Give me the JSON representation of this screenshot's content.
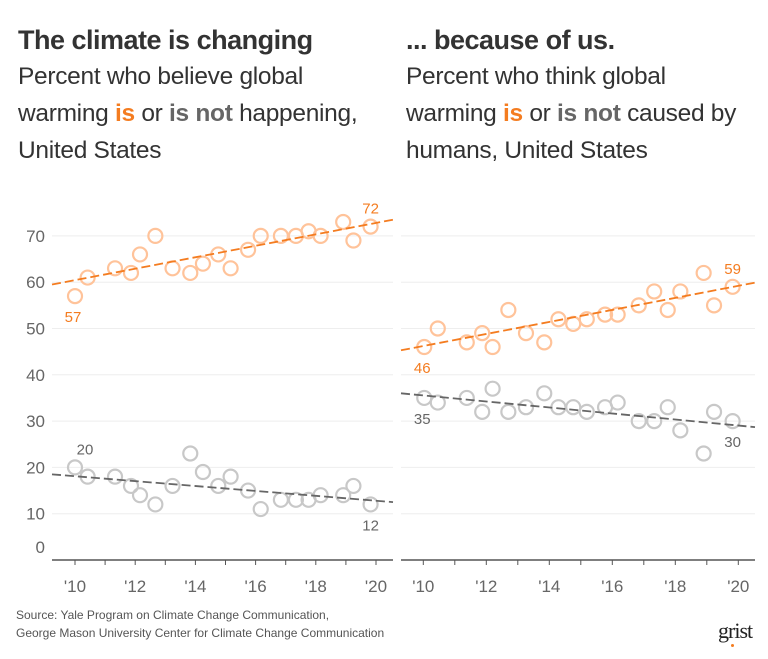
{
  "left_header": {
    "title": "The climate is changing",
    "sub_pre": "Percent who believe global warming ",
    "is": "is",
    "or": " or ",
    "is_not": "is not",
    "sub_post": " happening, United States"
  },
  "right_header": {
    "title": "... because of us.",
    "sub_pre": "Percent who think global warming ",
    "is": "is",
    "or": " or ",
    "is_not": "is not",
    "sub_post": " caused by humans, United States"
  },
  "footer": {
    "source_line1": "Source: Yale Program on Climate Change Communication,",
    "source_line2": "George Mason University Center for Climate Change Communication",
    "logo": "grist"
  },
  "colors": {
    "is": "#f47c20",
    "is_points": "#ffc39a",
    "is_not": "#666666",
    "is_not_points": "#c8c8c8",
    "grid": "#eeeeee"
  },
  "chart_data": [
    {
      "type": "scatter",
      "title": "The climate is changing",
      "ylim": [
        0,
        75
      ],
      "xlim": [
        2009.25,
        2020.6
      ],
      "y_ticks": [
        0,
        10,
        20,
        30,
        40,
        50,
        60,
        70
      ],
      "x_ticks": [
        "'10",
        "'12",
        "'14",
        "'16",
        "'18",
        "'20"
      ],
      "x_tick_years": [
        2010,
        2012,
        2014,
        2016,
        2018,
        2020
      ],
      "grid": true,
      "x": [
        2010.0,
        2010.42,
        2011.33,
        2011.86,
        2012.16,
        2012.67,
        2013.24,
        2013.83,
        2014.25,
        2014.76,
        2015.17,
        2015.75,
        2016.17,
        2016.84,
        2017.34,
        2017.76,
        2018.16,
        2018.91,
        2019.25,
        2019.82
      ],
      "series": [
        {
          "name": "is",
          "values": [
            57,
            61,
            63,
            62,
            66,
            70,
            63,
            62,
            64,
            66,
            63,
            67,
            70,
            70,
            70,
            71,
            70,
            73,
            69,
            72
          ],
          "trend": [
            59.5,
            73.5
          ],
          "labels": [
            {
              "index": 0,
              "text": "57",
              "pos": "below"
            },
            {
              "index": 19,
              "text": "72",
              "pos": "above"
            }
          ]
        },
        {
          "name": "is not",
          "values": [
            20,
            18,
            18,
            16,
            14,
            12,
            16,
            23,
            19,
            16,
            18,
            15,
            11,
            13,
            13,
            13,
            14,
            14,
            16,
            12
          ],
          "trend": [
            18.5,
            12.5
          ],
          "labels": [
            {
              "index": 0,
              "text": "20",
              "pos": "above"
            },
            {
              "index": 19,
              "text": "12",
              "pos": "below"
            }
          ]
        }
      ]
    },
    {
      "type": "scatter",
      "title": "... because of us.",
      "ylim": [
        0,
        75
      ],
      "xlim": [
        2009.3,
        2020.55
      ],
      "x_ticks": [
        "'10",
        "'12",
        "'14",
        "'16",
        "'18",
        "'20"
      ],
      "x_tick_years": [
        2010,
        2012,
        2014,
        2016,
        2018,
        2020
      ],
      "grid": true,
      "x": [
        2010.03,
        2010.46,
        2011.38,
        2011.87,
        2012.2,
        2012.7,
        2013.26,
        2013.84,
        2014.29,
        2014.76,
        2015.19,
        2015.77,
        2016.17,
        2016.84,
        2017.33,
        2017.76,
        2018.16,
        2018.9,
        2019.23,
        2019.82
      ],
      "series": [
        {
          "name": "is",
          "values": [
            46,
            50,
            47,
            49,
            46,
            54,
            49,
            47,
            52,
            51,
            52,
            53,
            53,
            55,
            58,
            54,
            58,
            62,
            55,
            59
          ],
          "trend": [
            45.3,
            59.9
          ],
          "labels": [
            {
              "index": 0,
              "text": "46",
              "pos": "below"
            },
            {
              "index": 19,
              "text": "59",
              "pos": "above"
            }
          ]
        },
        {
          "name": "is not",
          "values": [
            35,
            34,
            35,
            32,
            37,
            32,
            33,
            36,
            33,
            33,
            32,
            33,
            34,
            30,
            30,
            33,
            28,
            23,
            32,
            30
          ],
          "trend": [
            36.0,
            28.7
          ],
          "labels": [
            {
              "index": 0,
              "text": "35",
              "pos": "below"
            },
            {
              "index": 19,
              "text": "30",
              "pos": "below"
            }
          ]
        }
      ]
    }
  ]
}
